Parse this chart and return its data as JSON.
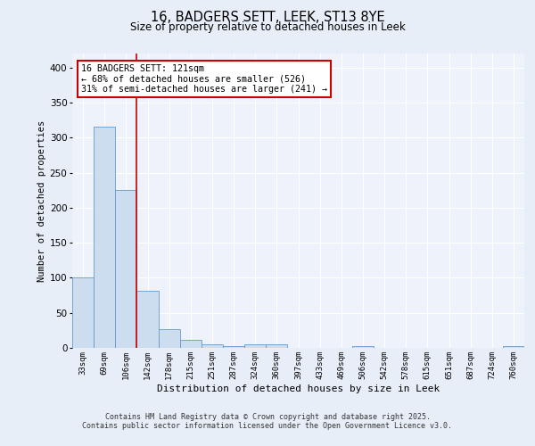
{
  "title_line1": "16, BADGERS SETT, LEEK, ST13 8YE",
  "title_line2": "Size of property relative to detached houses in Leek",
  "xlabel": "Distribution of detached houses by size in Leek",
  "ylabel": "Number of detached properties",
  "categories": [
    "33sqm",
    "69sqm",
    "106sqm",
    "142sqm",
    "178sqm",
    "215sqm",
    "251sqm",
    "287sqm",
    "324sqm",
    "360sqm",
    "397sqm",
    "433sqm",
    "469sqm",
    "506sqm",
    "542sqm",
    "578sqm",
    "615sqm",
    "651sqm",
    "687sqm",
    "724sqm",
    "760sqm"
  ],
  "values": [
    100,
    315,
    225,
    82,
    27,
    12,
    5,
    3,
    5,
    5,
    0,
    0,
    0,
    3,
    0,
    0,
    0,
    0,
    0,
    0,
    3
  ],
  "bar_color": "#ccddf0",
  "bar_edge_color": "#6699cc",
  "vline_color": "#cc0000",
  "annotation_text": "16 BADGERS SETT: 121sqm\n← 68% of detached houses are smaller (526)\n31% of semi-detached houses are larger (241) →",
  "annotation_box_color": "#cc0000",
  "ylim": [
    0,
    420
  ],
  "yticks": [
    0,
    50,
    100,
    150,
    200,
    250,
    300,
    350,
    400
  ],
  "footer_line1": "Contains HM Land Registry data © Crown copyright and database right 2025.",
  "footer_line2": "Contains public sector information licensed under the Open Government Licence v3.0.",
  "bg_color": "#e8eef8",
  "plot_bg_color": "#eef2fa",
  "grid_color": "#ffffff"
}
